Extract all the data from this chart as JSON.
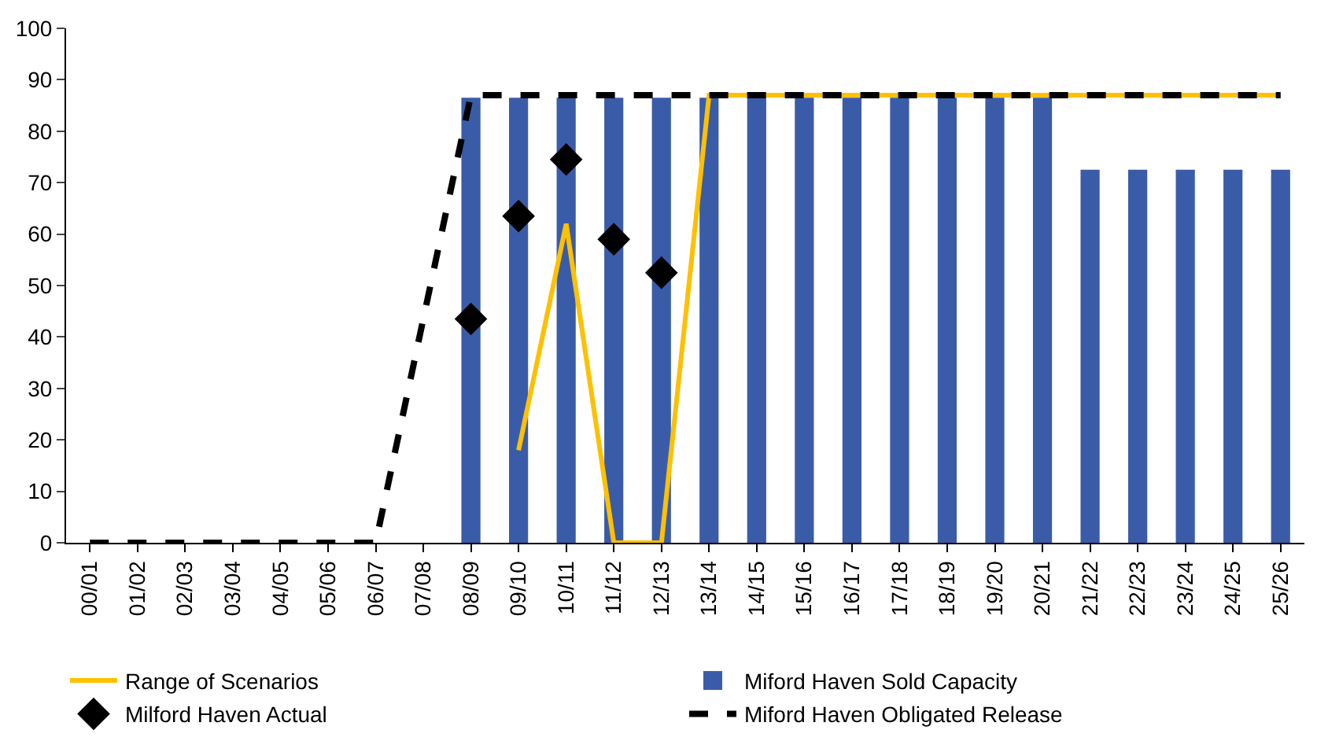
{
  "chart_data": {
    "type": "bar",
    "categories": [
      "00/01",
      "01/02",
      "02/03",
      "03/04",
      "04/05",
      "05/06",
      "06/07",
      "07/08",
      "08/09",
      "09/10",
      "10/11",
      "11/12",
      "12/13",
      "13/14",
      "14/15",
      "15/16",
      "16/17",
      "17/18",
      "18/19",
      "19/20",
      "20/21",
      "21/22",
      "22/23",
      "23/24",
      "24/25",
      "25/26"
    ],
    "series": [
      {
        "name": "Range of Scenarios",
        "type": "line",
        "color": "#ffc000",
        "values": [
          null,
          null,
          null,
          null,
          null,
          null,
          null,
          null,
          null,
          18,
          62,
          0,
          0,
          87,
          87,
          87,
          87,
          87,
          87,
          87,
          87,
          87,
          87,
          87,
          87,
          87
        ]
      },
      {
        "name": "Miford Haven Sold Capacity",
        "color": "#3a5ca8",
        "values": [
          null,
          null,
          null,
          null,
          null,
          null,
          null,
          null,
          86.5,
          86.5,
          86.5,
          86.5,
          86.5,
          86.5,
          86.5,
          86.5,
          86.5,
          86.5,
          86.5,
          86.5,
          86.5,
          72.5,
          72.5,
          72.5,
          72.5,
          72.5
        ]
      },
      {
        "name": "Milford Haven Actual",
        "type": "scatter",
        "color": "#000000",
        "marker": "diamond",
        "values": [
          null,
          null,
          null,
          null,
          null,
          null,
          null,
          null,
          43.5,
          63.5,
          74.5,
          59,
          52.5,
          null,
          null,
          null,
          null,
          null,
          null,
          null,
          null,
          null,
          null,
          null,
          null,
          null
        ]
      },
      {
        "name": "Miford Haven Obligated Release",
        "type": "line",
        "color": "#000000",
        "line_style": "dashed",
        "values": [
          0,
          0,
          0,
          0,
          0,
          0,
          0,
          43.5,
          87,
          87,
          87,
          87,
          87,
          87,
          87,
          87,
          87,
          87,
          87,
          87,
          87,
          87,
          87,
          87,
          87,
          87
        ]
      }
    ],
    "ylim": [
      0,
      100
    ],
    "yticks": [
      0,
      10,
      20,
      30,
      40,
      50,
      60,
      70,
      80,
      90,
      100
    ],
    "grid": false,
    "legend": "bottom"
  }
}
